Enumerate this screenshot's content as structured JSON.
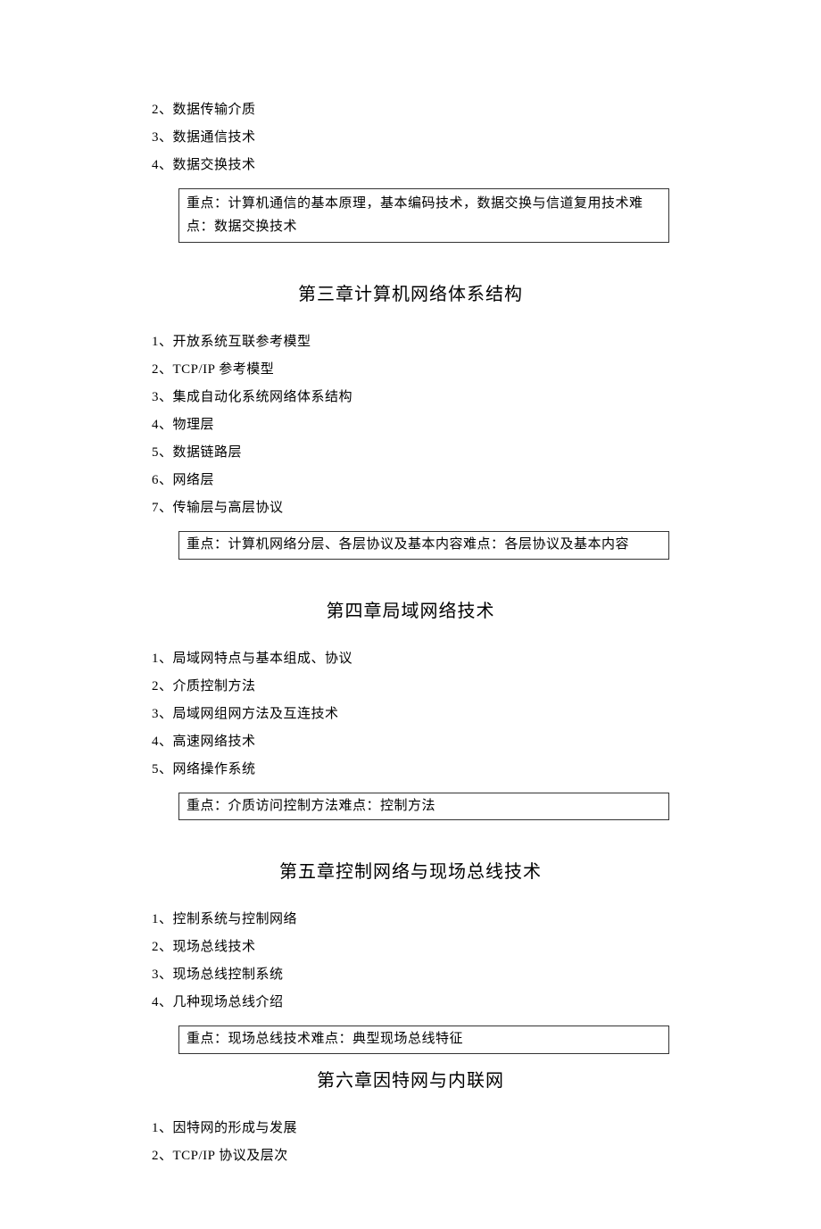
{
  "intro_items": [
    "2、数据传输介质",
    "3、数据通信技术",
    "4、数据交换技术"
  ],
  "intro_callout": "重点：计算机通信的基本原理，基本编码技术，数据交换与信道复用技术难点：数据交换技术",
  "chapter3": {
    "title": "第三章计算机网络体系结构",
    "items": [
      "1、开放系统互联参考模型",
      "2、TCP/IP 参考模型",
      "3、集成自动化系统网络体系结构",
      "4、物理层",
      "5、数据链路层",
      "6、网络层",
      "7、传输层与高层协议"
    ],
    "callout": "重点：计算机网络分层、各层协议及基本内容难点：各层协议及基本内容"
  },
  "chapter4": {
    "title": "第四章局域网络技术",
    "items": [
      "1、局域网特点与基本组成、协议",
      "2、介质控制方法",
      "3、局域网组网方法及互连技术",
      "4、高速网络技术",
      "5、网络操作系统"
    ],
    "callout": "重点：介质访问控制方法难点：控制方法"
  },
  "chapter5": {
    "title": "第五章控制网络与现场总线技术",
    "items": [
      "1、控制系统与控制网络",
      "2、现场总线技术",
      "3、现场总线控制系统",
      "4、几种现场总线介绍"
    ],
    "callout": "重点：现场总线技术难点：典型现场总线特征"
  },
  "chapter6": {
    "title": "第六章因特网与内联网",
    "items": [
      "1、因特网的形成与发展",
      "2、TCP/IP 协议及层次"
    ]
  }
}
